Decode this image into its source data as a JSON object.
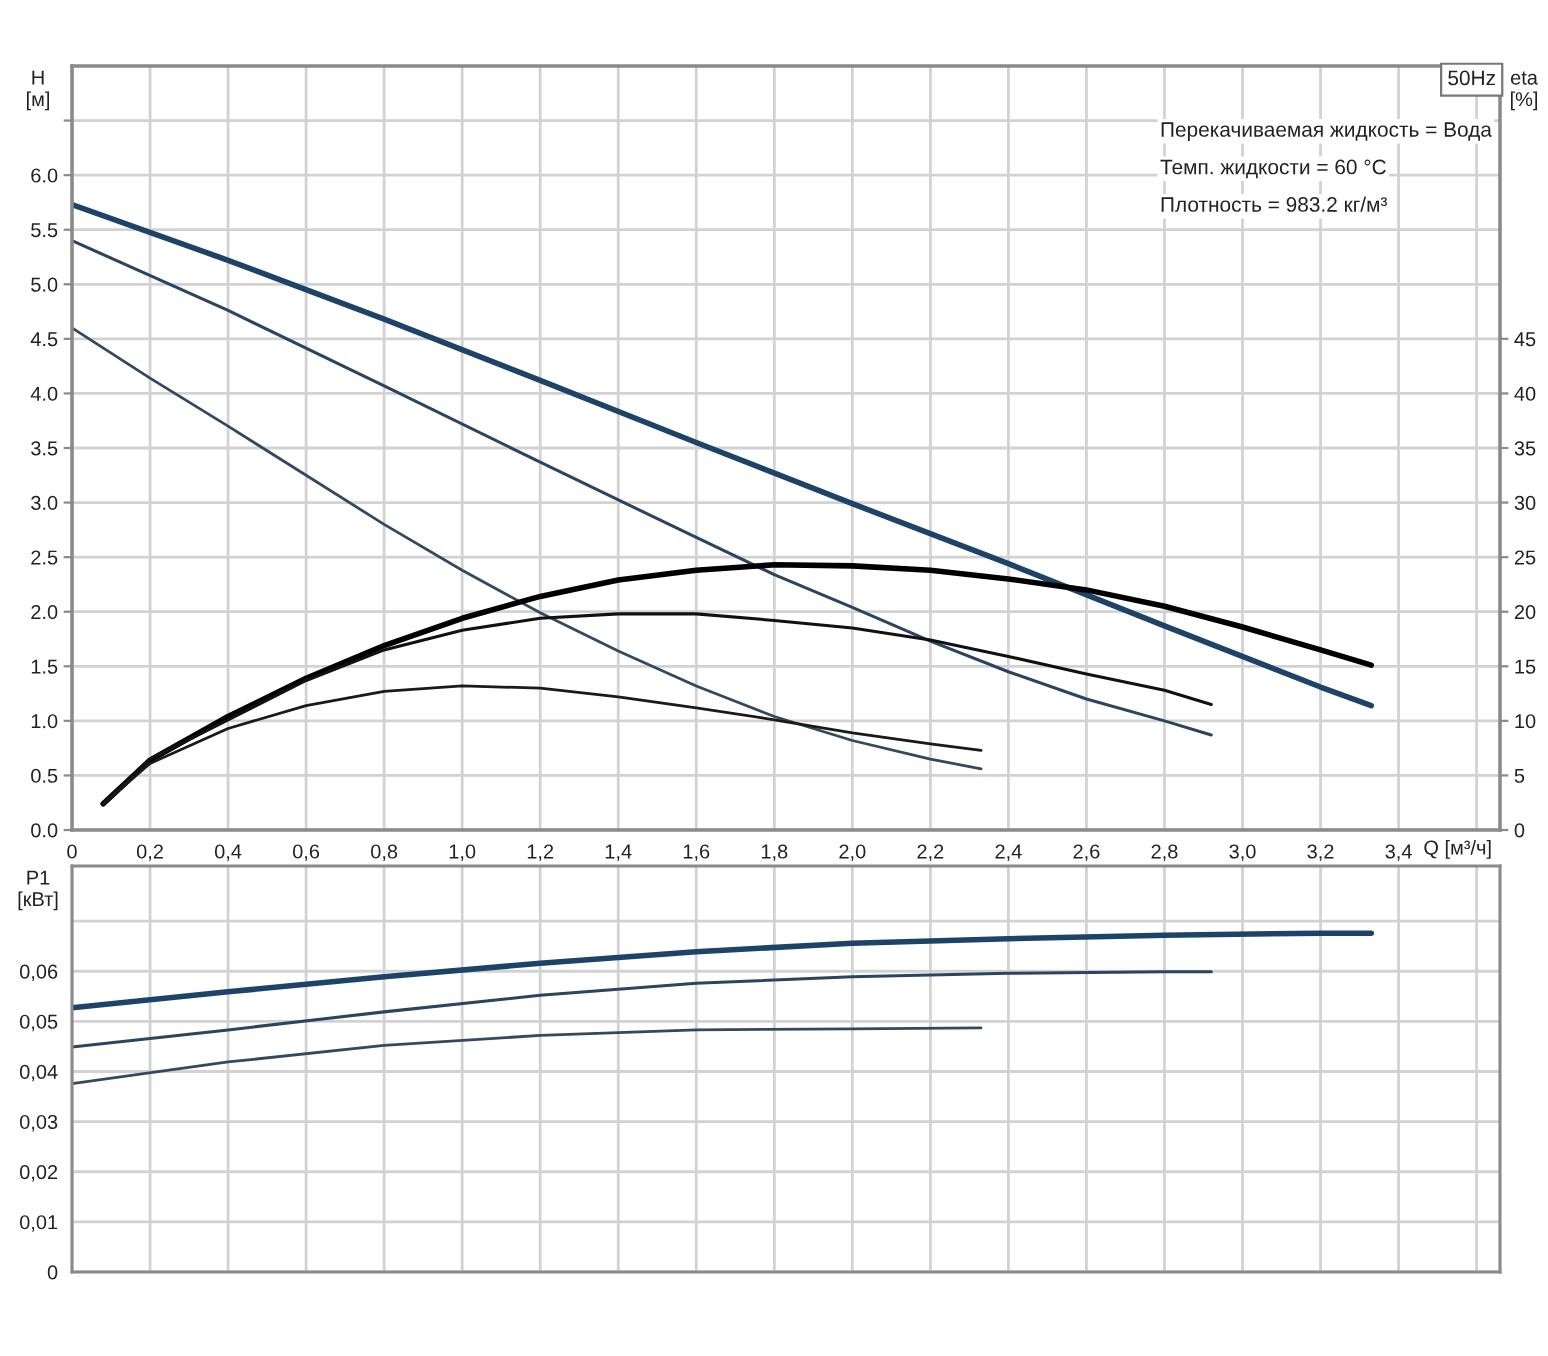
{
  "chart_data": [
    {
      "type": "line",
      "xlabel": "Q [м³/ч]",
      "ylabel": "H\n[м]",
      "y2label": "eta\n[%]",
      "xlim": [
        0,
        3.66
      ],
      "xticks": [
        0,
        {
          "value": 0.2,
          "label": "0,2"
        },
        {
          "value": 0.4,
          "label": "0,4"
        },
        {
          "value": 0.6,
          "label": "0,6"
        },
        {
          "value": 0.8,
          "label": "0,8"
        },
        {
          "value": 1.0,
          "label": "1,0"
        },
        {
          "value": 1.2,
          "label": "1,2"
        },
        {
          "value": 1.4,
          "label": "1,4"
        },
        {
          "value": 1.6,
          "label": "1,6"
        },
        {
          "value": 1.8,
          "label": "1,8"
        },
        {
          "value": 2.0,
          "label": "2,0"
        },
        {
          "value": 2.2,
          "label": "2,2"
        },
        {
          "value": 2.4,
          "label": "2,4"
        },
        {
          "value": 2.6,
          "label": "2,6"
        },
        {
          "value": 2.8,
          "label": "2,8"
        },
        {
          "value": 3.0,
          "label": "3,0"
        },
        {
          "value": 3.2,
          "label": "3,2"
        },
        {
          "value": 3.4,
          "label": "3,4"
        },
        {
          "value": 3.6,
          "label": null
        }
      ],
      "ylim": [
        0,
        7.0
      ],
      "yticks": [
        {
          "value": 0,
          "label": "0.0"
        },
        0.5,
        {
          "value": 1.0,
          "label": "1.0"
        },
        1.5,
        {
          "value": 2.0,
          "label": "2.0"
        },
        2.5,
        {
          "value": 3.0,
          "label": "3.0"
        },
        3.5,
        {
          "value": 4.0,
          "label": "4.0"
        },
        4.5,
        {
          "value": 5.0,
          "label": "5.0"
        },
        5.5,
        {
          "value": 6.0,
          "label": "6.0"
        },
        {
          "value": 6.5,
          "label": null
        }
      ],
      "y2lim": [
        0,
        70
      ],
      "y2ticks": [
        0,
        5,
        10,
        15,
        20,
        25,
        30,
        35,
        40,
        45
      ],
      "grid": true,
      "annotations": [
        "50Hz",
        "Перекачиваемая жидкость = Вода",
        "Темп. жидкости = 60 °C",
        "Плотность = 983.2 кг/м³"
      ],
      "series": [
        {
          "color": "#1d4468",
          "x": [
            0,
            0.4,
            0.8,
            1.2,
            1.6,
            2.0,
            2.4,
            2.8,
            3.2,
            3.33
          ],
          "values": [
            5.73,
            5.22,
            4.68,
            4.12,
            3.55,
            2.99,
            2.44,
            1.87,
            1.31,
            1.14
          ]
        },
        {
          "color": "#2b4560",
          "x": [
            0,
            0.4,
            0.8,
            1.2,
            1.6,
            1.8,
            2.0,
            2.2,
            2.4,
            2.6,
            2.8,
            2.92
          ],
          "values": [
            5.4,
            4.76,
            4.07,
            3.37,
            2.68,
            2.34,
            2.04,
            1.73,
            1.45,
            1.2,
            1.0,
            0.87
          ]
        },
        {
          "color": "#34495e",
          "x": [
            0,
            0.2,
            0.4,
            0.6,
            0.8,
            1.0,
            1.2,
            1.4,
            1.6,
            1.8,
            2.0,
            2.2,
            2.33
          ],
          "values": [
            4.6,
            4.14,
            3.7,
            3.25,
            2.8,
            2.38,
            1.99,
            1.64,
            1.32,
            1.04,
            0.82,
            0.65,
            0.56
          ]
        },
        {
          "axis": "y2",
          "color": "#000000",
          "x": [
            0.08,
            0.2,
            0.4,
            0.6,
            0.8,
            1.0,
            1.2,
            1.4,
            1.6,
            1.8,
            2.0,
            2.2,
            2.4,
            2.6,
            2.8,
            3.0,
            3.2,
            3.33
          ],
          "values": [
            2.4,
            6.4,
            10.4,
            13.9,
            16.9,
            19.4,
            21.4,
            22.9,
            23.8,
            24.3,
            24.2,
            23.8,
            23.0,
            22.0,
            20.5,
            18.6,
            16.5,
            15.1
          ]
        },
        {
          "axis": "y2",
          "color": "#111111",
          "x": [
            0.08,
            0.2,
            0.4,
            0.6,
            0.8,
            1.0,
            1.2,
            1.4,
            1.6,
            1.8,
            2.0,
            2.2,
            2.4,
            2.6,
            2.8,
            2.92
          ],
          "values": [
            2.4,
            6.5,
            10.1,
            13.7,
            16.5,
            18.3,
            19.4,
            19.8,
            19.8,
            19.2,
            18.5,
            17.4,
            15.9,
            14.3,
            12.8,
            11.5
          ]
        },
        {
          "axis": "y2",
          "color": "#1a1a1a",
          "x": [
            0.08,
            0.2,
            0.4,
            0.6,
            0.8,
            1.0,
            1.2,
            1.4,
            1.6,
            1.8,
            2.0,
            2.2,
            2.33
          ],
          "values": [
            2.4,
            6.1,
            9.3,
            11.4,
            12.7,
            13.2,
            13.0,
            12.2,
            11.2,
            10.1,
            8.9,
            7.9,
            7.3
          ]
        }
      ]
    },
    {
      "type": "line",
      "ylabel": "P1\n[кВт]",
      "xlim": [
        0,
        3.66
      ],
      "xticks": [
        0,
        0.2,
        0.4,
        0.6,
        0.8,
        1.0,
        1.2,
        1.4,
        1.6,
        1.8,
        2.0,
        2.2,
        2.4,
        2.6,
        2.8,
        3.0,
        3.2,
        3.4,
        3.6
      ],
      "ylim": [
        0,
        0.081
      ],
      "yticks": [
        0,
        {
          "value": 0.01,
          "label": "0,01"
        },
        {
          "value": 0.02,
          "label": "0,02"
        },
        {
          "value": 0.03,
          "label": "0,03"
        },
        {
          "value": 0.04,
          "label": "0,04"
        },
        {
          "value": 0.05,
          "label": "0,05"
        },
        {
          "value": 0.06,
          "label": "0,06"
        },
        {
          "value": 0.07,
          "label": null
        }
      ],
      "tick_labels": "y",
      "grid": true,
      "series": [
        {
          "color": "#1d4468",
          "x": [
            0,
            0.4,
            0.8,
            1.2,
            1.6,
            2.0,
            2.4,
            2.8,
            3.2,
            3.33
          ],
          "values": [
            0.0527,
            0.0559,
            0.0589,
            0.0616,
            0.0639,
            0.0656,
            0.0665,
            0.0672,
            0.0676,
            0.0676
          ]
        },
        {
          "color": "#2b4560",
          "x": [
            0,
            0.4,
            0.8,
            1.2,
            1.6,
            2.0,
            2.4,
            2.8,
            2.92
          ],
          "values": [
            0.0449,
            0.0483,
            0.0519,
            0.0552,
            0.0576,
            0.0589,
            0.0596,
            0.0599,
            0.0599
          ]
        },
        {
          "color": "#34495e",
          "x": [
            0,
            0.4,
            0.8,
            1.2,
            1.6,
            2.0,
            2.33
          ],
          "values": [
            0.0376,
            0.0419,
            0.0452,
            0.0472,
            0.0483,
            0.0485,
            0.0487
          ]
        }
      ]
    }
  ]
}
